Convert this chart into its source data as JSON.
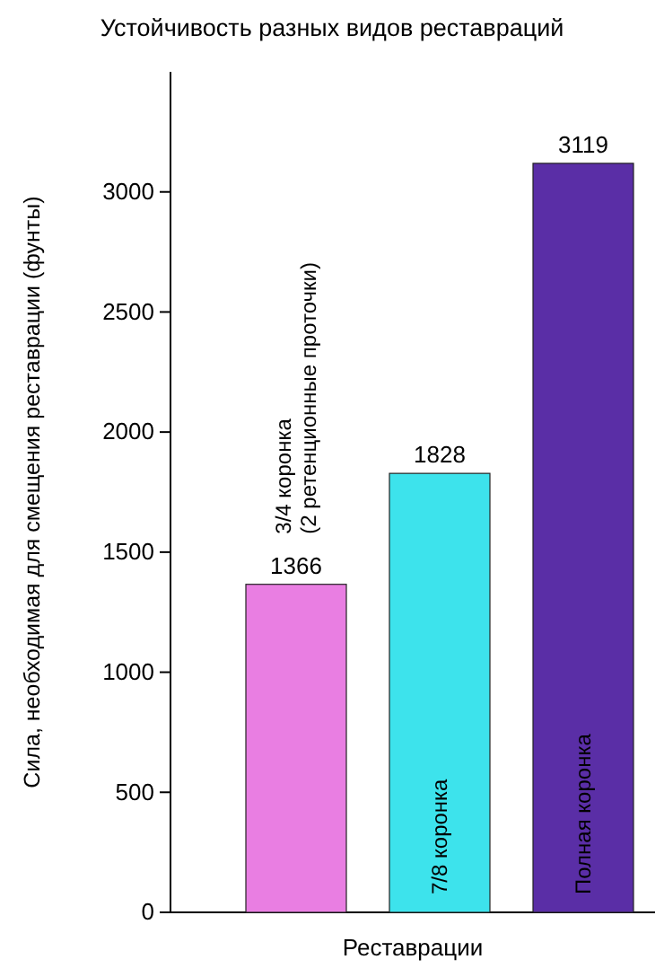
{
  "chart_data": {
    "type": "bar",
    "title": "Устойчивость разных видов реставраций",
    "xlabel": "Реставрации",
    "ylabel": "Сила, необходимая для смещения реставрации (фунты)",
    "categories": [
      "3/4 коронка\n(2 ретенционные проточки)",
      "7/8 коронка",
      "Полная коронка"
    ],
    "values": [
      1366,
      1828,
      3119
    ],
    "colors": [
      "#e97ee2",
      "#3de3ec",
      "#5a2ea6"
    ],
    "ylim": [
      0,
      3500
    ],
    "yticks": [
      0,
      500,
      1000,
      1500,
      2000,
      2500,
      3000
    ],
    "data_labels": true
  }
}
